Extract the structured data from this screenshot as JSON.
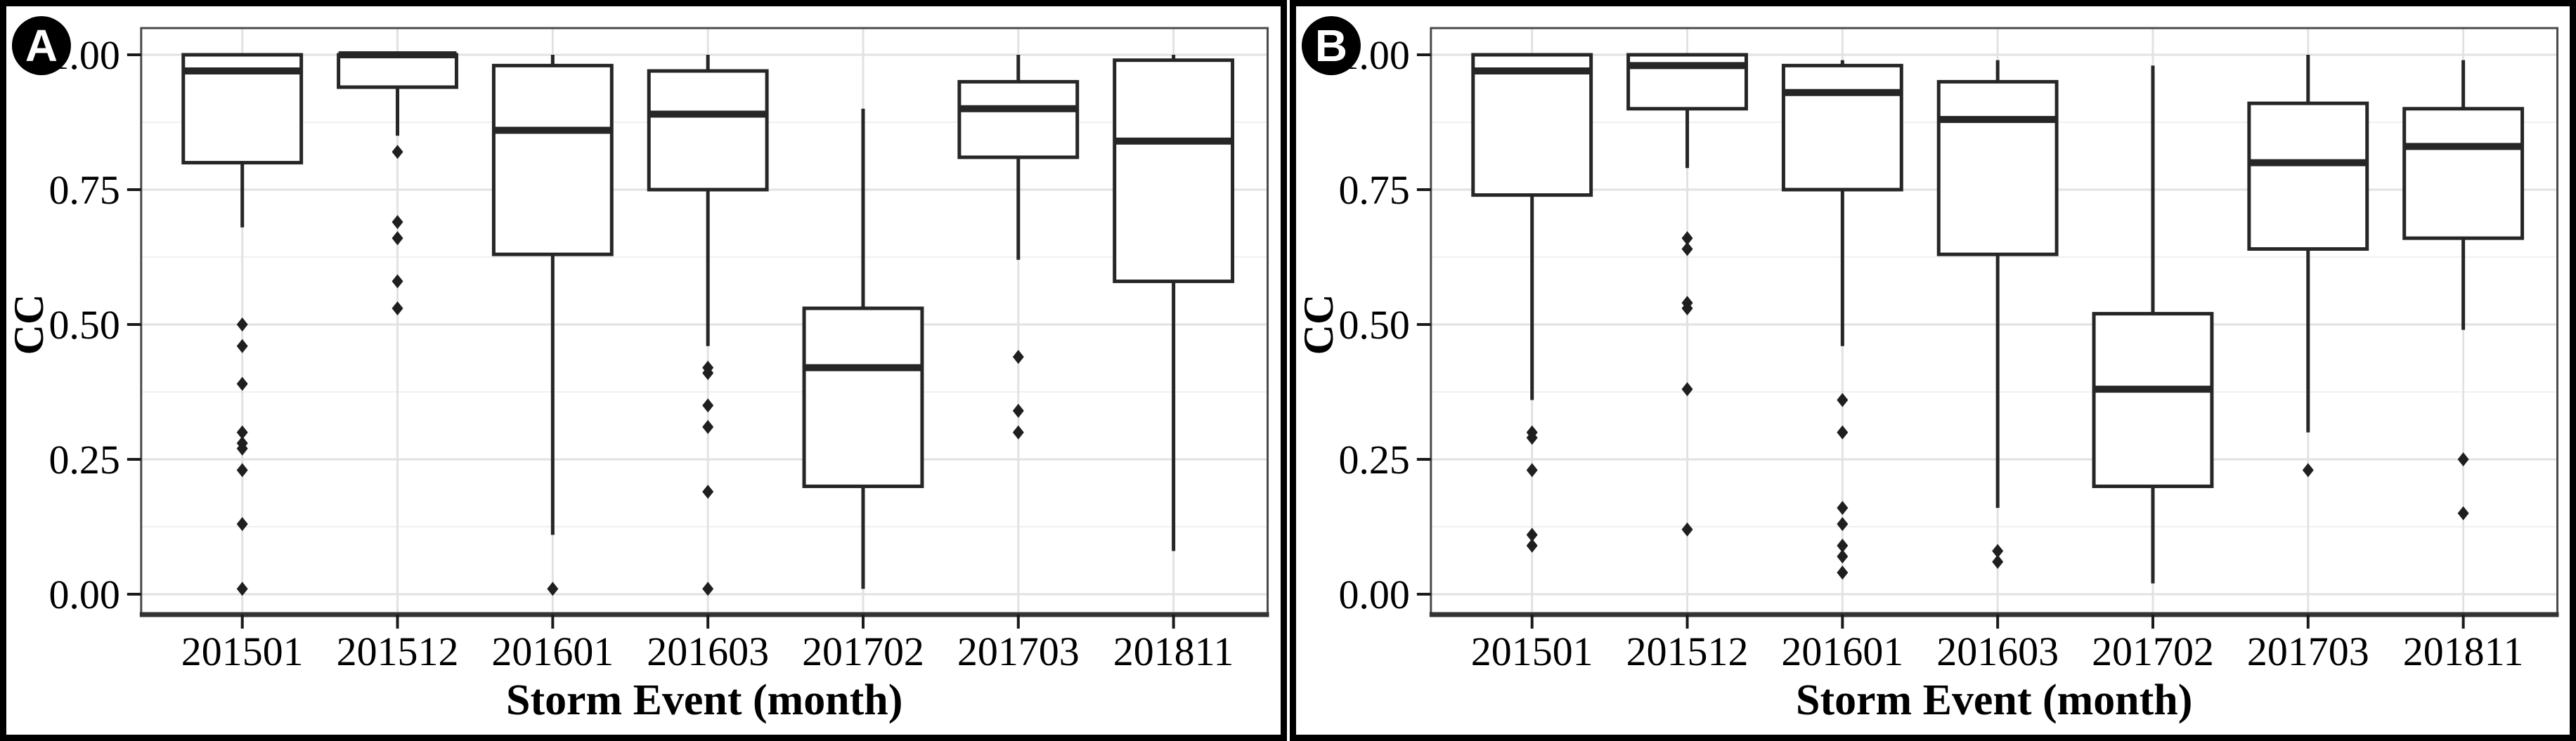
{
  "figure": {
    "background": "#ffffff",
    "panel_border_color": "#000000",
    "frame_color": "#4a4a4a",
    "axis_line_color": "#333333",
    "grid_major_color": "#e2e2e2",
    "grid_minor_color": "#f0f0f0",
    "box_color": "#262626",
    "outlier_color": "#1f1f1f",
    "text_color": "#000000",
    "badge_bg": "#000000",
    "badge_text_color": "#ffffff"
  },
  "chart_data": [
    {
      "type": "boxplot",
      "panel_label": "A",
      "title": "",
      "xlabel": "Storm Event (month)",
      "ylabel": "CC",
      "categories": [
        "201501",
        "201512",
        "201601",
        "201603",
        "201702",
        "201703",
        "201811"
      ],
      "y_ticks": [
        {
          "label": "1.00",
          "value": 1.0
        },
        {
          "label": "0.75",
          "value": 0.75
        },
        {
          "label": "0.50",
          "value": 0.5
        },
        {
          "label": "0.25",
          "value": 0.25
        },
        {
          "label": "0.00",
          "value": 0.0
        }
      ],
      "y_minor_ticks": [
        0.875,
        0.625,
        0.375,
        0.125
      ],
      "ylim": [
        -0.038,
        1.049
      ],
      "grid": "horizontal major + minor, vertical major at each category; legend none",
      "series": [
        {
          "category": "201501",
          "whisker_low": 0.68,
          "q1": 0.8,
          "median": 0.97,
          "q3": 1.0,
          "whisker_high": 1.0,
          "outliers": [
            0.5,
            0.46,
            0.39,
            0.3,
            0.28,
            0.27,
            0.23,
            0.13,
            0.01
          ]
        },
        {
          "category": "201512",
          "whisker_low": 0.85,
          "q1": 0.94,
          "median": 1.0,
          "q3": 1.0,
          "whisker_high": 1.0,
          "outliers": [
            0.82,
            0.69,
            0.66,
            0.58,
            0.53
          ]
        },
        {
          "category": "201601",
          "whisker_low": 0.11,
          "q1": 0.63,
          "median": 0.86,
          "q3": 0.98,
          "whisker_high": 1.0,
          "outliers": [
            0.01
          ]
        },
        {
          "category": "201603",
          "whisker_low": 0.46,
          "q1": 0.75,
          "median": 0.89,
          "q3": 0.97,
          "whisker_high": 1.0,
          "outliers": [
            0.42,
            0.41,
            0.35,
            0.31,
            0.19,
            0.01
          ]
        },
        {
          "category": "201702",
          "whisker_low": 0.01,
          "q1": 0.2,
          "median": 0.42,
          "q3": 0.53,
          "whisker_high": 0.9,
          "outliers": []
        },
        {
          "category": "201703",
          "whisker_low": 0.62,
          "q1": 0.81,
          "median": 0.9,
          "q3": 0.95,
          "whisker_high": 1.0,
          "outliers": [
            0.44,
            0.34,
            0.3
          ]
        },
        {
          "category": "201811",
          "whisker_low": 0.08,
          "q1": 0.58,
          "median": 0.84,
          "q3": 0.99,
          "whisker_high": 1.0,
          "outliers": []
        }
      ]
    },
    {
      "type": "boxplot",
      "panel_label": "B",
      "title": "",
      "xlabel": "Storm Event (month)",
      "ylabel": "CC",
      "categories": [
        "201501",
        "201512",
        "201601",
        "201603",
        "201702",
        "201703",
        "201811"
      ],
      "y_ticks": [
        {
          "label": "1.00",
          "value": 1.0
        },
        {
          "label": "0.75",
          "value": 0.75
        },
        {
          "label": "0.50",
          "value": 0.5
        },
        {
          "label": "0.25",
          "value": 0.25
        },
        {
          "label": "0.00",
          "value": 0.0
        }
      ],
      "y_minor_ticks": [
        0.875,
        0.625,
        0.375,
        0.125
      ],
      "ylim": [
        -0.038,
        1.049
      ],
      "grid": "horizontal major + minor, vertical major at each category; legend none",
      "series": [
        {
          "category": "201501",
          "whisker_low": 0.36,
          "q1": 0.74,
          "median": 0.97,
          "q3": 1.0,
          "whisker_high": 1.0,
          "outliers": [
            0.3,
            0.29,
            0.23,
            0.11,
            0.09
          ]
        },
        {
          "category": "201512",
          "whisker_low": 0.79,
          "q1": 0.9,
          "median": 0.98,
          "q3": 1.0,
          "whisker_high": 1.0,
          "outliers": [
            0.66,
            0.64,
            0.54,
            0.53,
            0.38,
            0.12
          ]
        },
        {
          "category": "201601",
          "whisker_low": 0.46,
          "q1": 0.75,
          "median": 0.93,
          "q3": 0.98,
          "whisker_high": 0.99,
          "outliers": [
            0.36,
            0.3,
            0.16,
            0.13,
            0.09,
            0.07,
            0.04
          ]
        },
        {
          "category": "201603",
          "whisker_low": 0.16,
          "q1": 0.63,
          "median": 0.88,
          "q3": 0.95,
          "whisker_high": 0.99,
          "outliers": [
            0.08,
            0.06
          ]
        },
        {
          "category": "201702",
          "whisker_low": 0.02,
          "q1": 0.2,
          "median": 0.38,
          "q3": 0.52,
          "whisker_high": 0.98,
          "outliers": []
        },
        {
          "category": "201703",
          "whisker_low": 0.3,
          "q1": 0.64,
          "median": 0.8,
          "q3": 0.91,
          "whisker_high": 1.0,
          "outliers": [
            0.23
          ]
        },
        {
          "category": "201811",
          "whisker_low": 0.49,
          "q1": 0.66,
          "median": 0.83,
          "q3": 0.9,
          "whisker_high": 0.99,
          "outliers": [
            0.25,
            0.15
          ]
        }
      ]
    }
  ]
}
